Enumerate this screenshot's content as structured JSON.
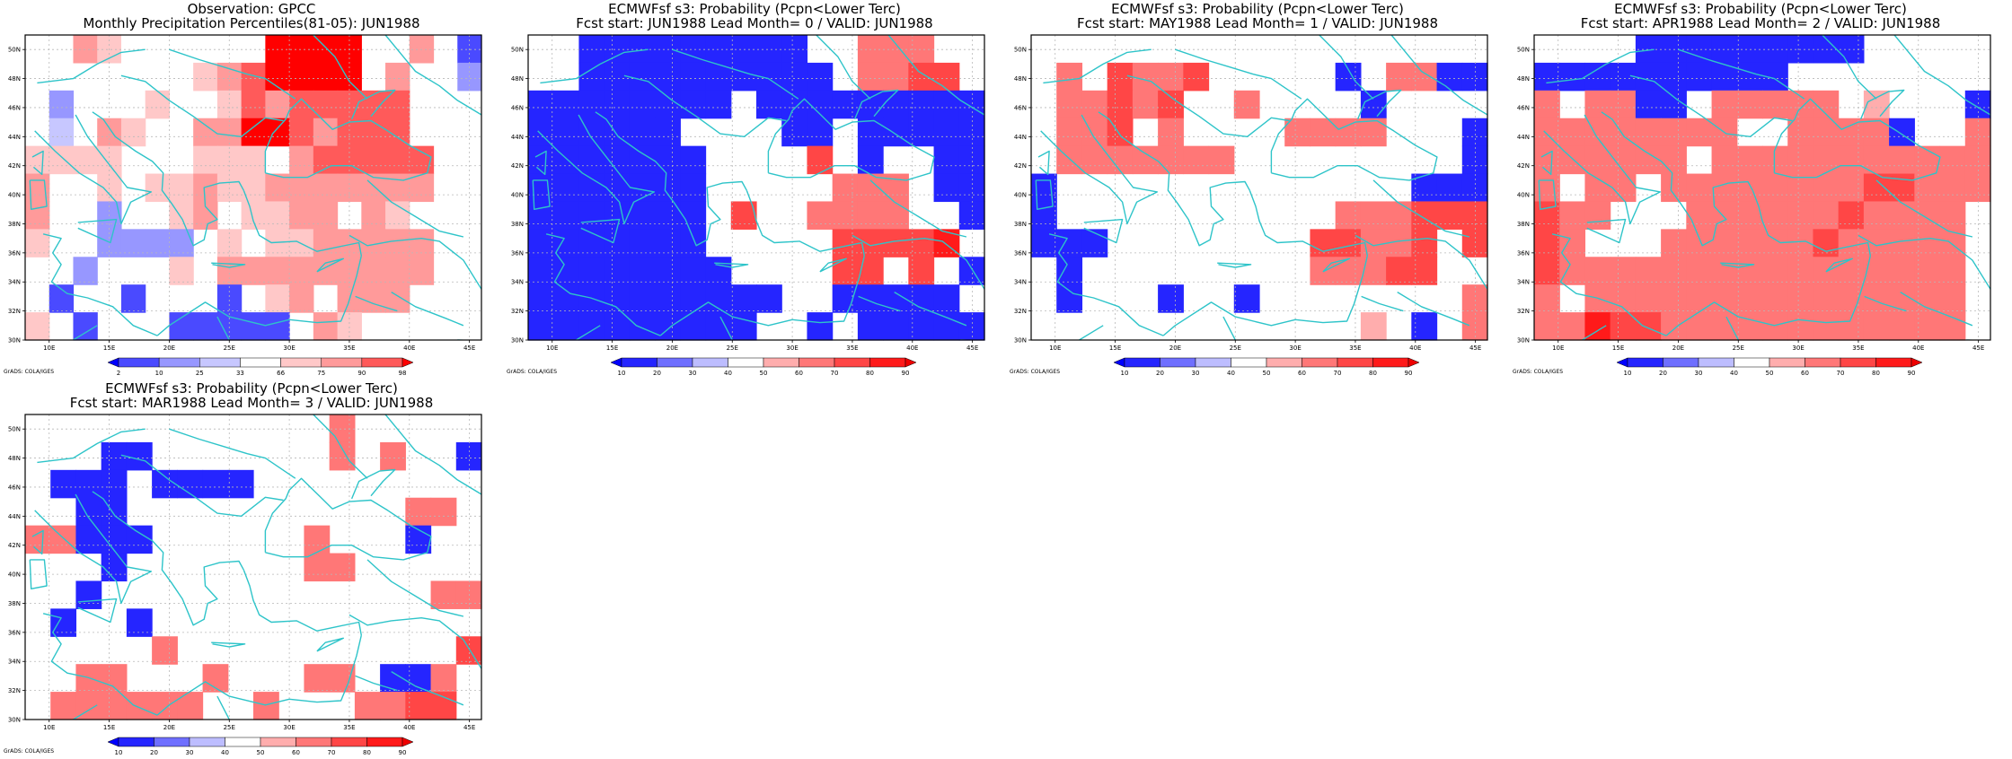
{
  "page_title": "",
  "credit": "GrADS: COLA/IGES",
  "axis": {
    "lon_ticks": [
      "10E",
      "15E",
      "20E",
      "25E",
      "30E",
      "35E",
      "40E",
      "45E"
    ],
    "lat_ticks": [
      "30N",
      "32N",
      "34N",
      "36N",
      "38N",
      "40N",
      "42N",
      "44N",
      "46N",
      "48N",
      "50N"
    ],
    "lon_range": [
      8,
      46
    ],
    "lat_range": [
      30,
      51
    ]
  },
  "colors": {
    "frame": "#000000",
    "coastline": "#2ec4c9",
    "grid": "#b8b8b8"
  },
  "colorbars": {
    "percentile": {
      "labels": [
        "2",
        "10",
        "25",
        "33",
        "66",
        "75",
        "90",
        "98"
      ],
      "colors": [
        "#0000ff",
        "#4a4aff",
        "#9797ff",
        "#c7c7ff",
        "#ffffff",
        "#ffc8c8",
        "#ff9a9a",
        "#ff5a5a",
        "#ff0000"
      ]
    },
    "probability": {
      "labels": [
        "10",
        "20",
        "30",
        "40",
        "50",
        "60",
        "70",
        "80",
        "90"
      ],
      "colors": [
        "#0000ff",
        "#2525ff",
        "#6f6fff",
        "#bdbdff",
        "#ffffff",
        "#ffadad",
        "#ff7777",
        "#ff4646",
        "#ff1a1a",
        "#ee0000"
      ]
    }
  },
  "panels": [
    {
      "id": "obs",
      "title_line1": "Observation: GPCC",
      "title_line2": "Monthly Precipitation Percentiles(81-05): JUN1988",
      "colorbar": "percentile",
      "grid_rows": [
        "  654     8888  6 1",
        "       5678888 6  2",
        " 2   5  57677777  ",
        " 3 65  668876777  ",
        "5555   555 677777 ",
        "6  5 556556666666 ",
        "6  2  56 5566 65  ",
        "5  2222 5 5566666 ",
        "  2   5 666666666 ",
        " 1  1   1 56 666  ",
        "5 1   11111 65    "
      ]
    },
    {
      "id": "lead0",
      "title_line1": "ECMWFsf s3: Probability (Pcpn<Lower Terc)",
      "title_line2": "Fcst start: JUN1988  Lead Month= 0 / VALID: JUN1988",
      "colorbar": "probability",
      "grid_rows": [
        "  111111111  666  ",
        "  1111111111 6677 ",
        "11111111 111111111",
        "111111    11 11111",
        "1111111    7 1  11",
        "1111111     666 11",
        "1111111 7  6666  1",
        "1111111     77778 ",
        "11111111    77 7 1",
        "1111111111  11111 ",
        "111111111  1 11111"
      ]
    },
    {
      "id": "lead1",
      "title_line1": "ECMWFsf s3: Probability (Pcpn<Lower Terc)",
      "title_line2": "Fcst start: MAY1988  Lead Month= 1 / VALID: JUN1988",
      "colorbar": "probability",
      "grid_rows": [
        "                  ",
        " 6 7667     1 6611",
        " 66767  6    1    ",
        " 667 6    6666   1",
        " 6666666         1",
        "1              111",
        "1           666777",
        "111        77667 7",
        " 1         66677  ",
        " 1   1  1        6",
        "             5 1 6"
      ]
    },
    {
      "id": "lead2",
      "title_line1": "ECMWFsf s3: Probability (Pcpn<Lower Terc)",
      "title_line2": "Fcst start: APR1988  Lead Month= 2 / VALID: JUN1988",
      "colorbar": "probability",
      "grid_rows": [
        "    111111111     ",
        "1111111111        ",
        "6 6611 66666 5   1",
        "66666666  66661  6",
        "666666 66666666666",
        "6 66 6666666677666",
        "766   66666676666 ",
        "76   666666766666 ",
        "76666666666666666 ",
        "6 666666666666666 ",
        "66877666666666666 "
      ]
    },
    {
      "id": "lead3",
      "title_line1": "ECMWFsf s3: Probability (Pcpn<Lower Terc)",
      "title_line2": "Fcst start: MAR1988  Lead Month= 3 / VALID: JUN1988",
      "colorbar": "probability",
      "grid_rows": [
        "            6     ",
        "   11       6 6  1",
        " 111 1111         ",
        "  11           66 ",
        "66111      6   1  ",
        "   1       66     ",
        "  1             66",
        " 1  1             ",
        "     6           7",
        "  66   6   66 116 ",
        " 666666  6   6677 "
      ]
    }
  ]
}
